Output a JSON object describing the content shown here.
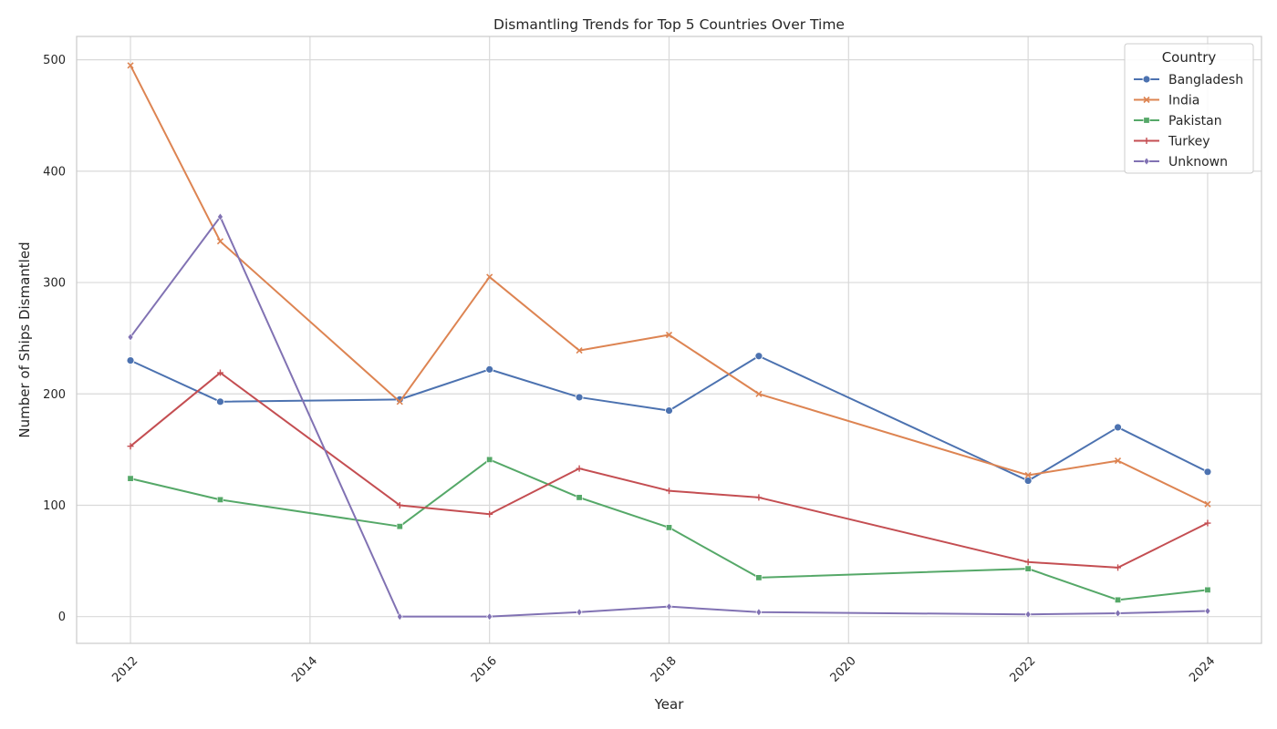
{
  "chart_data": {
    "type": "line",
    "title": "Dismantling Trends for Top 5 Countries Over Time",
    "xlabel": "Year",
    "ylabel": "Number of Ships Dismantled",
    "xlim": [
      2011.4,
      2024.6
    ],
    "ylim": [
      -24,
      521
    ],
    "x_ticks": [
      2012,
      2014,
      2016,
      2018,
      2020,
      2022,
      2024
    ],
    "y_ticks": [
      0,
      100,
      200,
      300,
      400,
      500
    ],
    "grid": true,
    "legend": {
      "title": "Country",
      "placement": "top-right"
    },
    "x": [
      2012,
      2013,
      2015,
      2016,
      2017,
      2018,
      2019,
      2022,
      2023,
      2024
    ],
    "series": [
      {
        "name": "Bangladesh",
        "color": "#4c72b0",
        "marker": "circle",
        "values": [
          230,
          193,
          195,
          222,
          197,
          185,
          234,
          122,
          170,
          130
        ]
      },
      {
        "name": "India",
        "color": "#dd8452",
        "marker": "x",
        "values": [
          495,
          337,
          193,
          305,
          239,
          253,
          200,
          127,
          140,
          101
        ]
      },
      {
        "name": "Pakistan",
        "color": "#55a868",
        "marker": "square",
        "values": [
          124,
          105,
          81,
          141,
          107,
          80,
          35,
          43,
          15,
          24
        ]
      },
      {
        "name": "Turkey",
        "color": "#c44e52",
        "marker": "plus",
        "values": [
          153,
          219,
          100,
          92,
          133,
          113,
          107,
          49,
          44,
          84
        ]
      },
      {
        "name": "Unknown",
        "color": "#8172b3",
        "marker": "diamond",
        "values": [
          251,
          359,
          0,
          0,
          4,
          9,
          4,
          2,
          3,
          5
        ]
      }
    ]
  }
}
